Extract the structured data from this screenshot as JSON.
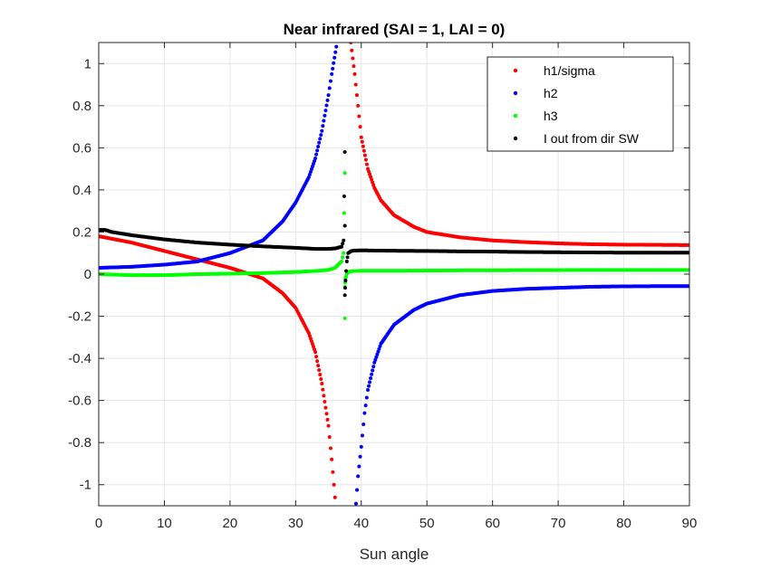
{
  "chart_data": {
    "type": "scatter",
    "title": "Near infrared (SAI = 1, LAI = 0)",
    "xlabel": "Sun angle",
    "ylabel": "",
    "xlim": [
      0,
      90
    ],
    "ylim": [
      -1.1,
      1.1
    ],
    "xticks": [
      0,
      10,
      20,
      30,
      40,
      50,
      60,
      70,
      80,
      90
    ],
    "xtick_labels": [
      "0",
      "10",
      "20",
      "30",
      "40",
      "50",
      "60",
      "70",
      "80",
      "90"
    ],
    "yticks": [
      -1,
      -0.8,
      -0.6,
      -0.4,
      -0.2,
      0,
      0.2,
      0.4,
      0.6,
      0.8,
      1
    ],
    "ytick_labels": [
      "-1",
      "-0.8",
      "-0.6",
      "-0.4",
      "-0.2",
      "0",
      "0.2",
      "0.4",
      "0.6",
      "0.8",
      "1"
    ],
    "grid": true,
    "legend_position": "top-right",
    "series": [
      {
        "name": "h1/sigma",
        "color": "#ff0000",
        "x": [
          0,
          5,
          10,
          15,
          20,
          25,
          28,
          30,
          32,
          33,
          34,
          35,
          35.5,
          36,
          38.4,
          39,
          39.5,
          40,
          41,
          42,
          43,
          45,
          48,
          50,
          55,
          60,
          65,
          70,
          75,
          80,
          85,
          90
        ],
        "y": [
          0.18,
          0.15,
          0.11,
          0.07,
          0.03,
          -0.02,
          -0.09,
          -0.16,
          -0.28,
          -0.37,
          -0.52,
          -0.72,
          -0.88,
          -1.06,
          1.1,
          0.95,
          0.8,
          0.65,
          0.5,
          0.41,
          0.35,
          0.28,
          0.225,
          0.2,
          0.175,
          0.16,
          0.152,
          0.146,
          0.142,
          0.14,
          0.139,
          0.138
        ]
      },
      {
        "name": "h2",
        "color": "#0000ff",
        "x": [
          0,
          5,
          10,
          15,
          20,
          25,
          28,
          30,
          32,
          33,
          34,
          35,
          35.5,
          36.2,
          39.2,
          39.5,
          40,
          40.5,
          41,
          42,
          43,
          45,
          48,
          50,
          55,
          60,
          65,
          70,
          75,
          80,
          85,
          90
        ],
        "y": [
          0.03,
          0.035,
          0.045,
          0.06,
          0.1,
          0.16,
          0.25,
          0.34,
          0.46,
          0.55,
          0.68,
          0.85,
          0.95,
          1.08,
          -1.09,
          -0.96,
          -0.82,
          -0.66,
          -0.55,
          -0.42,
          -0.33,
          -0.24,
          -0.17,
          -0.14,
          -0.1,
          -0.08,
          -0.07,
          -0.065,
          -0.06,
          -0.058,
          -0.057,
          -0.057
        ]
      },
      {
        "name": "h3",
        "color": "#00ff00",
        "x": [
          0,
          5,
          10,
          15,
          20,
          25,
          30,
          33,
          35,
          36,
          37,
          37.3,
          37.5,
          37.5,
          37.5,
          37.6,
          37.8,
          38,
          38.5,
          39,
          40,
          42,
          45,
          50,
          55,
          60,
          65,
          70,
          75,
          80,
          85,
          90
        ],
        "y": [
          0.0,
          -0.005,
          -0.005,
          0.0,
          0.002,
          0.005,
          0.01,
          0.015,
          0.02,
          0.03,
          0.06,
          0.1,
          0.48,
          -0.21,
          -0.06,
          -0.02,
          0.0,
          0.01,
          0.014,
          0.015,
          0.016,
          0.016,
          0.016,
          0.017,
          0.018,
          0.018,
          0.019,
          0.019,
          0.02,
          0.02,
          0.02,
          0.02
        ]
      },
      {
        "name": "I out from dir SW",
        "color": "#000000",
        "x": [
          0,
          1,
          2,
          5,
          10,
          15,
          20,
          25,
          30,
          33,
          35,
          36,
          37,
          37.3,
          37.5,
          37.5,
          37.5,
          37.6,
          37.8,
          38,
          38.5,
          39,
          40,
          42,
          45,
          50,
          55,
          60,
          65,
          70,
          75,
          80,
          85,
          90
        ],
        "y": [
          0.21,
          0.21,
          0.2,
          0.185,
          0.165,
          0.15,
          0.14,
          0.132,
          0.125,
          0.12,
          0.12,
          0.122,
          0.13,
          0.16,
          0.58,
          0.23,
          -0.1,
          -0.03,
          0.06,
          0.1,
          0.11,
          0.112,
          0.113,
          0.112,
          0.111,
          0.11,
          0.108,
          0.107,
          0.105,
          0.104,
          0.103,
          0.102,
          0.102,
          0.102
        ]
      }
    ]
  }
}
